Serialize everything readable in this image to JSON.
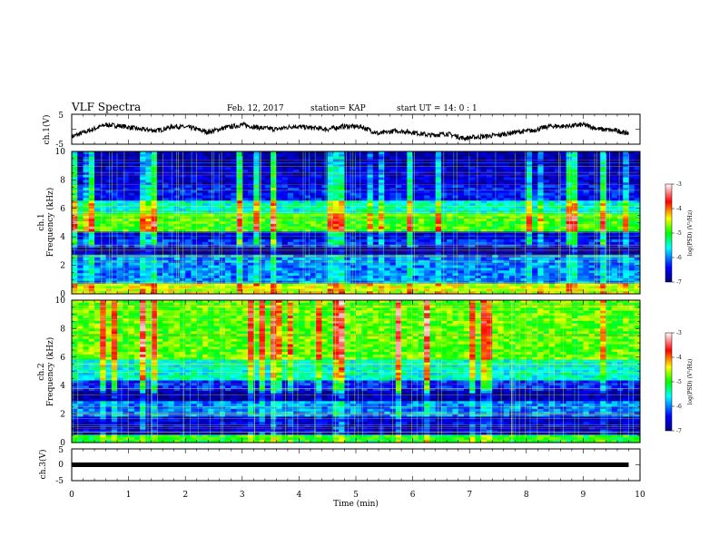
{
  "header": {
    "title": "VLF Spectra",
    "date": "Feb. 12, 2017",
    "station": "station= KAP",
    "start": "start UT =  14: 0  : 1"
  },
  "chart_data": [
    {
      "type": "line",
      "panel": "ch1-waveform",
      "ylabel": "ch.1(V)",
      "ylim": [
        -5,
        5
      ],
      "yticks": [
        "5",
        "-5"
      ],
      "xlim": [
        0,
        10
      ],
      "series": [
        {
          "x": [
            0,
            0.3,
            0.6,
            0.9,
            1.2,
            1.5,
            1.8,
            2.1,
            2.4,
            2.7,
            3.0,
            3.3,
            3.6,
            3.9,
            4.2,
            4.5,
            4.8,
            5.1,
            5.4,
            5.7,
            6.0,
            6.3,
            6.6,
            6.9,
            7.2,
            7.5,
            7.8,
            8.1,
            8.4,
            8.7,
            9.0,
            9.3,
            9.6,
            9.8
          ],
          "y": [
            -2.5,
            -0.5,
            1.5,
            1,
            0,
            -0.5,
            1,
            0.5,
            -1,
            0.5,
            1.5,
            0.5,
            0,
            1,
            0.5,
            0,
            1,
            0.8,
            -1.5,
            -0.5,
            -1,
            -2,
            -1.5,
            -3,
            -2.5,
            -2,
            -1,
            -0.5,
            1,
            1,
            1.5,
            0,
            -0.5,
            -1.5
          ]
        }
      ]
    },
    {
      "type": "heatmap",
      "panel": "ch1-spectrogram",
      "ylabel": "ch.1",
      "ylabel2": "Frequency (kHz)",
      "ylim": [
        0,
        10
      ],
      "yticks": [
        "0",
        "2",
        "4",
        "6",
        "8",
        "10"
      ],
      "xlim": [
        0,
        10
      ],
      "colorbar": {
        "label": "log(PSD) (V²/Hz)",
        "range": [
          -7,
          -3
        ],
        "ticks": [
          "-3",
          "-4",
          "-5",
          "-6",
          "-7"
        ]
      },
      "bands": [
        {
          "from": 0,
          "to": 0.8,
          "level": -4.5
        },
        {
          "from": 0.8,
          "to": 2.8,
          "level": -6.0
        },
        {
          "from": 2.8,
          "to": 3.2,
          "level": -6.9
        },
        {
          "from": 3.2,
          "to": 3.8,
          "level": -6.3
        },
        {
          "from": 3.8,
          "to": 4.3,
          "level": -6.6
        },
        {
          "from": 4.3,
          "to": 5.6,
          "level": -4.9
        },
        {
          "from": 5.6,
          "to": 6.6,
          "level": -5.5
        },
        {
          "from": 6.6,
          "to": 7.6,
          "level": -6.4
        },
        {
          "from": 7.6,
          "to": 9.0,
          "level": -6.6
        },
        {
          "from": 9.0,
          "to": 10,
          "level": -6.8
        }
      ]
    },
    {
      "type": "heatmap",
      "panel": "ch2-spectrogram",
      "ylabel": "ch.2",
      "ylabel2": "Frequency (kHz)",
      "ylim": [
        0,
        10
      ],
      "yticks": [
        "0",
        "2",
        "4",
        "6",
        "8",
        "10"
      ],
      "xlim": [
        0,
        10
      ],
      "colorbar": {
        "label": "log(PSD) (V²/Hz)",
        "range": [
          -7,
          -3
        ],
        "ticks": [
          "-3",
          "-4",
          "-5",
          "-6",
          "-7"
        ]
      },
      "bands": [
        {
          "from": 0,
          "to": 0.6,
          "level": -5.0
        },
        {
          "from": 0.6,
          "to": 1.8,
          "level": -6.6
        },
        {
          "from": 1.8,
          "to": 3.0,
          "level": -6.0
        },
        {
          "from": 3.0,
          "to": 3.6,
          "level": -6.8
        },
        {
          "from": 3.6,
          "to": 4.4,
          "level": -6.3
        },
        {
          "from": 4.4,
          "to": 5.8,
          "level": -5.5
        },
        {
          "from": 5.8,
          "to": 10,
          "level": -4.8
        }
      ]
    },
    {
      "type": "line",
      "panel": "ch3-waveform",
      "ylabel": "ch.3(V)",
      "ylim": [
        -5,
        5
      ],
      "yticks": [
        "5",
        "0",
        "-5"
      ],
      "xlim": [
        0,
        10
      ],
      "xlabel": "Time (min)",
      "xticks": [
        "0",
        "1",
        "2",
        "3",
        "4",
        "5",
        "6",
        "7",
        "8",
        "9",
        "10"
      ],
      "series": [
        {
          "x": [
            0,
            9.8
          ],
          "y": [
            0,
            0
          ]
        }
      ]
    }
  ]
}
